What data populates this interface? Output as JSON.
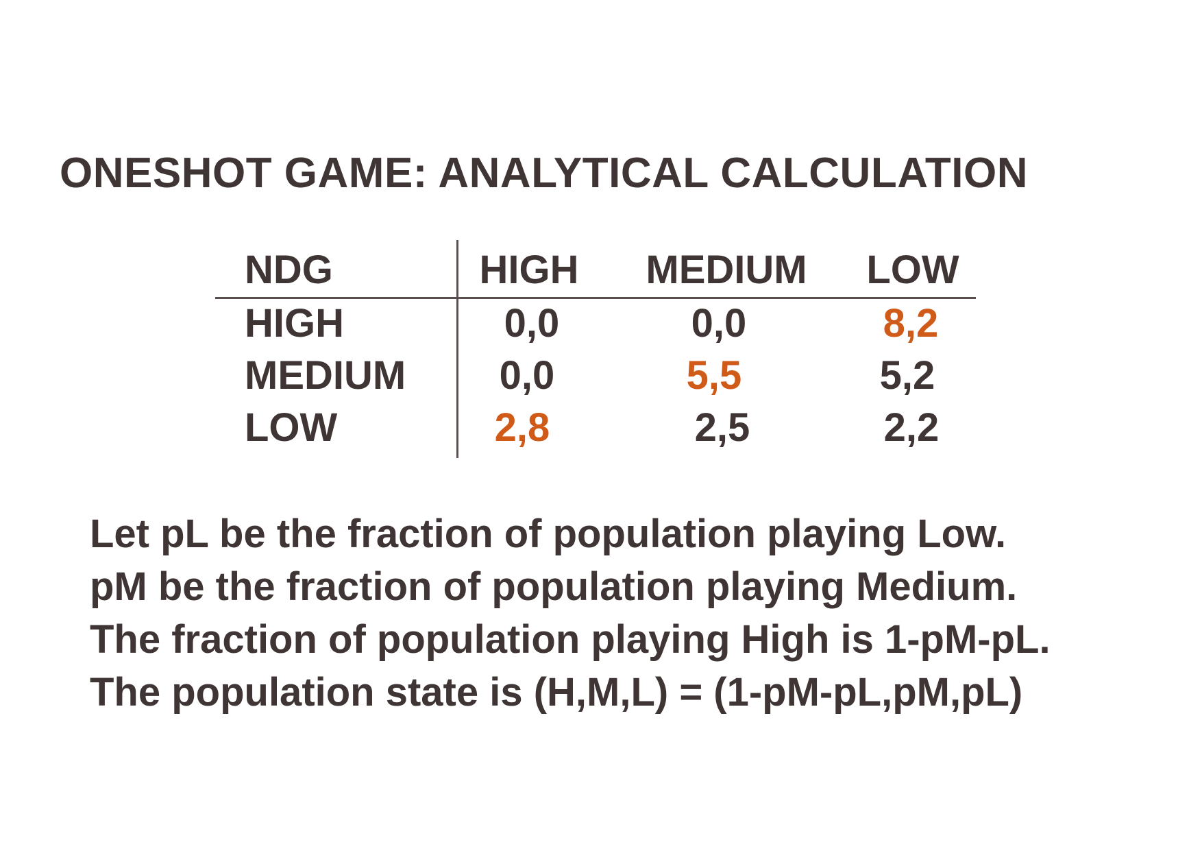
{
  "title": "ONESHOT GAME: ANALYTICAL CALCULATION",
  "colors": {
    "text": "#3f3535",
    "highlight": "#d05a18",
    "rule": "#5a4f4f"
  },
  "payoff_table": {
    "corner_label": "NDG",
    "column_headers": [
      "HIGH",
      "MEDIUM",
      "LOW"
    ],
    "rows": [
      {
        "label": "HIGH",
        "cells": [
          {
            "value": "0,0",
            "highlight": false
          },
          {
            "value": "0,0",
            "highlight": false
          },
          {
            "value": "8,2",
            "highlight": true
          }
        ]
      },
      {
        "label": "MEDIUM",
        "cells": [
          {
            "value": "0,0",
            "highlight": false
          },
          {
            "value": "5,5",
            "highlight": true
          },
          {
            "value": "5,2",
            "highlight": false
          }
        ]
      },
      {
        "label": "LOW",
        "cells": [
          {
            "value": "2,8",
            "highlight": true
          },
          {
            "value": "2,5",
            "highlight": false
          },
          {
            "value": "2,2",
            "highlight": false
          }
        ]
      }
    ]
  },
  "description_lines": [
    "Let pL be the fraction of population playing Low.",
    "pM be the fraction of population playing Medium.",
    "The fraction of population playing High is 1-pM-pL.",
    "The population state is (H,M,L) = (1-pM-pL,pM,pL)"
  ]
}
